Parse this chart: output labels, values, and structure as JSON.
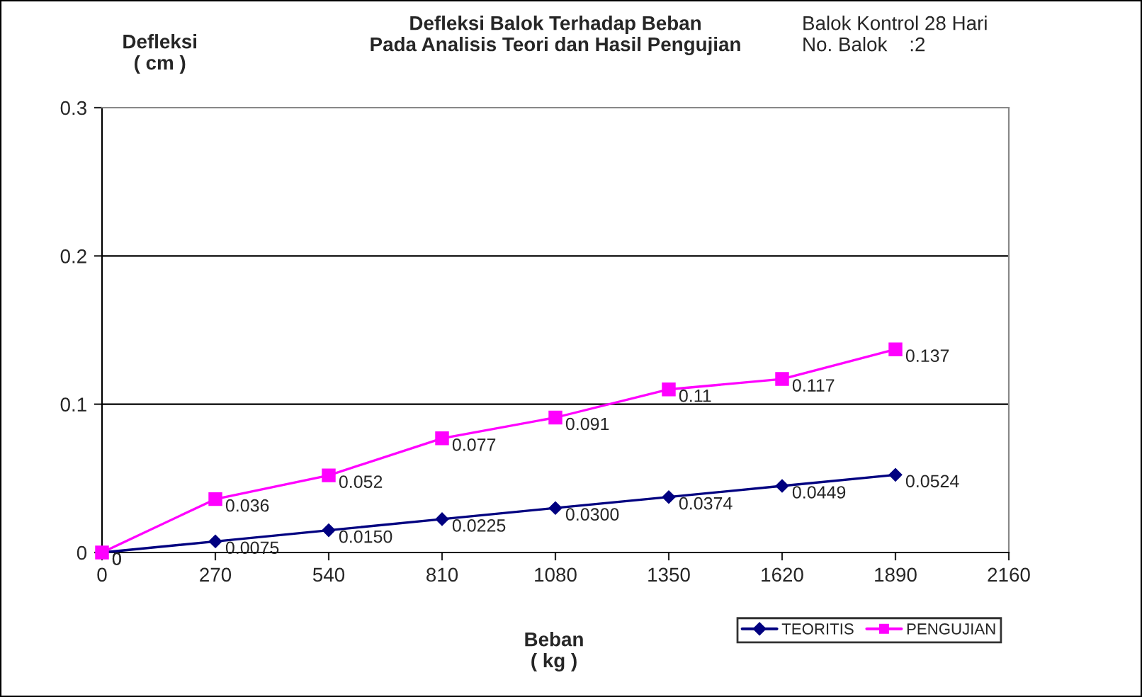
{
  "chart_data": {
    "type": "line",
    "title": "Defleksi Balok Terhadap Beban\nPada Analisis Teori dan Hasil Pengujian",
    "xlabel": "Beban\n( kg )",
    "ylabel": "Defleksi\n( cm )",
    "annotations": [
      "Balok Kontrol 28 Hari\nNo. Balok    :2"
    ],
    "x": [
      0,
      270,
      540,
      810,
      1080,
      1350,
      1620,
      1890
    ],
    "series": [
      {
        "name": "TEORITIS",
        "color": "#000080",
        "marker": "diamond",
        "values": [
          0,
          0.0075,
          0.015,
          0.0225,
          0.03,
          0.0374,
          0.0449,
          0.0524
        ],
        "value_labels": [
          "0",
          "0.0075",
          "0.0150",
          "0.0225",
          "0.0300",
          "0.0374",
          "0.0449",
          "0.0524"
        ]
      },
      {
        "name": "PENGUJIAN",
        "color": "#ff00ff",
        "marker": "square",
        "values": [
          0,
          0.036,
          0.052,
          0.077,
          0.091,
          0.11,
          0.117,
          0.137
        ],
        "value_labels": [
          "0",
          "0.036",
          "0.052",
          "0.077",
          "0.091",
          "0.11",
          "0.117",
          "0.137"
        ]
      }
    ],
    "xlim": [
      0,
      2160
    ],
    "xticks": [
      0,
      270,
      540,
      810,
      1080,
      1350,
      1620,
      1890,
      2160
    ],
    "ylim": [
      0,
      0.3
    ],
    "yticks": [
      0,
      0.1,
      0.2,
      0.3
    ],
    "grid": "y",
    "legend": "bottom right",
    "line_style": "solid"
  }
}
